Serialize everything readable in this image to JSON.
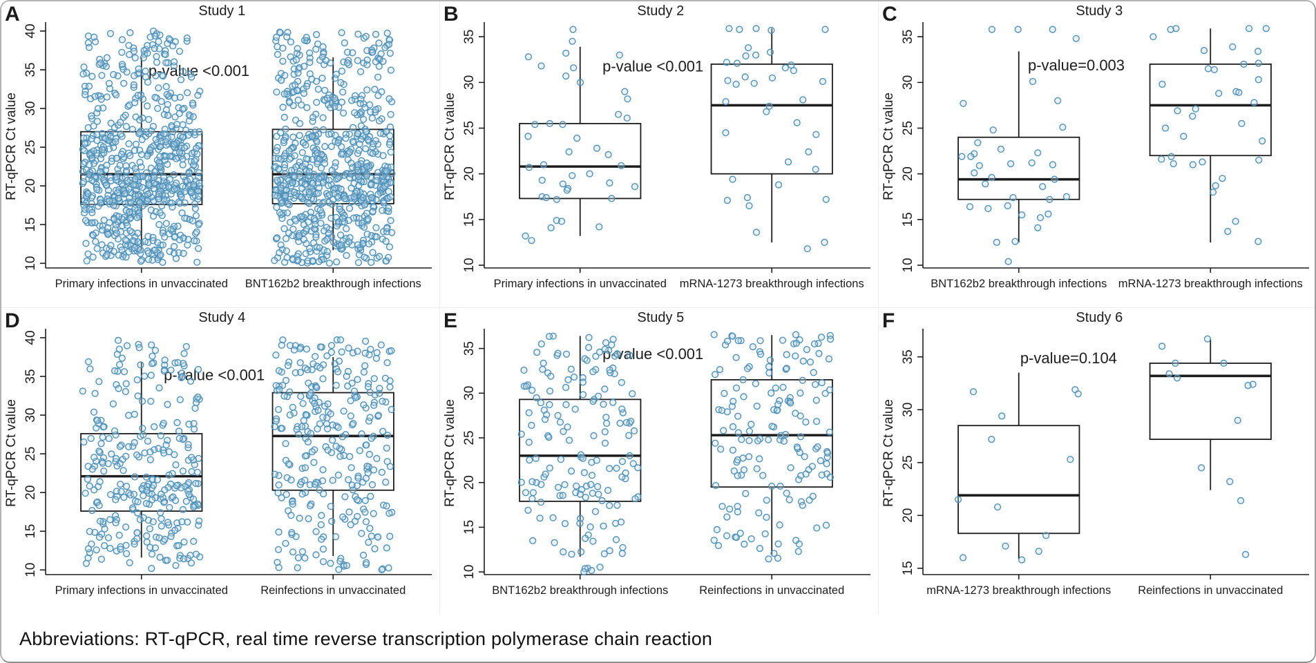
{
  "window": {
    "footer": "Abbreviations: RT-qPCR, real time reverse transcription polymerase chain reaction"
  },
  "style": {
    "point_stroke": "#4d8fb9",
    "point_fill": "#bcd9e9",
    "line_color": "#1c1c1c",
    "text_color": "#1c1c1c",
    "background": "#ffffff",
    "border_color": "#b3b3b3"
  },
  "chart_data": [
    {
      "type": "box-jitter",
      "panel_label": "A",
      "title": "Study 1",
      "p_label": "p-value <0.001",
      "p_pos": [
        0.4,
        34.2
      ],
      "ylabel": "RT-qPCR Ct value",
      "ylim": [
        9.4,
        40.8
      ],
      "yticks": [
        10,
        15,
        20,
        25,
        30,
        35,
        40
      ],
      "groups": [
        {
          "label": "Primary infections in unvaccinated",
          "box": {
            "whisker_low": 11.7,
            "q1": 17.6,
            "median": 21.5,
            "q3": 27.0,
            "whisker_high": 36.6
          },
          "points": {
            "n": 720,
            "min": 10.0,
            "max": 40.0,
            "seed": 101
          }
        },
        {
          "label": "BNT162b2 breakthrough infections",
          "box": {
            "whisker_low": 11.7,
            "q1": 17.7,
            "median": 21.5,
            "q3": 27.3,
            "whisker_high": 36.6
          },
          "points": {
            "n": 720,
            "min": 10.0,
            "max": 40.0,
            "seed": 102
          }
        }
      ]
    },
    {
      "type": "box-jitter",
      "panel_label": "B",
      "title": "Study 2",
      "p_label": "p-value <0.001",
      "p_pos": [
        0.44,
        31.2
      ],
      "ylabel": "RT-qPCR Ct value",
      "ylim": [
        9.7,
        36.3
      ],
      "yticks": [
        10,
        15,
        20,
        25,
        30,
        35
      ],
      "groups": [
        {
          "label": "Primary infections in unvaccinated",
          "box": {
            "whisker_low": 13.2,
            "q1": 17.3,
            "median": 20.8,
            "q3": 25.5,
            "whisker_high": 33.9
          },
          "points": {
            "seed": 201,
            "values": [
              35.8,
              34.5,
              33.2,
              33.0,
              32.8,
              31.8,
              31.6,
              30.7,
              30.0,
              29.0,
              28.2,
              26.5,
              26.1,
              25.5,
              25.4,
              25.4,
              24.1,
              23.9,
              22.8,
              22.4,
              22.1,
              21.0,
              20.9,
              20.7,
              20.0,
              19.8,
              19.3,
              19.0,
              18.9,
              18.6,
              18.4,
              18.2,
              17.5,
              17.4,
              17.3,
              17.2,
              14.9,
              14.8,
              14.2,
              14.1,
              13.2,
              12.7
            ]
          }
        },
        {
          "label": "mRNA-1273 breakthrough infections",
          "box": {
            "whisker_low": 12.5,
            "q1": 20.0,
            "median": 27.5,
            "q3": 32.0,
            "whisker_high": 35.9
          },
          "points": {
            "seed": 202,
            "values": [
              35.9,
              35.8,
              35.8,
              35.7,
              35.9,
              33.8,
              33.3,
              33.0,
              32.9,
              32.2,
              32.1,
              31.9,
              31.6,
              31.3,
              30.6,
              30.5,
              30.2,
              30.1,
              29.9,
              29.8,
              28.1,
              27.9,
              27.4,
              26.8,
              25.6,
              24.5,
              24.3,
              22.4,
              21.3,
              20.5,
              19.4,
              18.8,
              17.4,
              17.2,
              17.1,
              16.5,
              13.6,
              12.5,
              11.8
            ]
          }
        }
      ]
    },
    {
      "type": "box-jitter",
      "panel_label": "C",
      "title": "Study 3",
      "p_label": "p-value=0.003",
      "p_pos": [
        0.4,
        31.3
      ],
      "ylabel": "RT-qPCR Ct value",
      "ylim": [
        9.7,
        36.3
      ],
      "yticks": [
        10,
        15,
        20,
        25,
        30,
        35
      ],
      "groups": [
        {
          "label": "BNT162b2 breakthrough infections",
          "box": {
            "whisker_low": 12.5,
            "q1": 17.2,
            "median": 19.4,
            "q3": 24.0,
            "whisker_high": 33.4
          },
          "points": {
            "seed": 301,
            "values": [
              35.8,
              35.8,
              35.8,
              34.8,
              30.1,
              28.0,
              27.7,
              25.1,
              24.8,
              23.4,
              22.7,
              22.3,
              22.2,
              21.9,
              21.9,
              21.2,
              21.1,
              21.0,
              20.9,
              20.1,
              19.6,
              19.4,
              18.9,
              18.6,
              17.5,
              17.4,
              17.2,
              16.5,
              16.4,
              16.2,
              15.6,
              15.5,
              15.2,
              14.1,
              12.6,
              12.5,
              10.4
            ]
          }
        },
        {
          "label": "mRNA-1273 breakthrough infections",
          "box": {
            "whisker_low": 12.5,
            "q1": 22.0,
            "median": 27.5,
            "q3": 32.0,
            "whisker_high": 35.9
          },
          "points": {
            "seed": 302,
            "values": [
              35.9,
              35.9,
              35.9,
              35.8,
              35.0,
              33.9,
              33.5,
              33.4,
              32.1,
              32.0,
              31.5,
              31.4,
              30.3,
              29.8,
              29.0,
              28.9,
              28.8,
              27.8,
              27.1,
              26.9,
              26.3,
              25.5,
              25.0,
              24.1,
              23.6,
              21.9,
              21.6,
              21.5,
              21.3,
              21.1,
              21.0,
              19.5,
              18.7,
              18.0,
              14.8,
              13.7,
              12.6
            ]
          }
        }
      ]
    },
    {
      "type": "box-jitter",
      "panel_label": "D",
      "title": "Study 4",
      "p_label": "p-value <0.001",
      "p_pos": [
        0.44,
        34.5
      ],
      "ylabel": "RT-qPCR Ct value",
      "ylim": [
        9.4,
        40.8
      ],
      "yticks": [
        10,
        15,
        20,
        25,
        30,
        35,
        40
      ],
      "groups": [
        {
          "label": "Primary infections in unvaccinated",
          "box": {
            "whisker_low": 11.6,
            "q1": 17.6,
            "median": 22.1,
            "q3": 27.6,
            "whisker_high": 36.8
          },
          "points": {
            "n": 300,
            "min": 10.0,
            "max": 40.0,
            "seed": 401
          }
        },
        {
          "label": "Reinfections in unvaccinated",
          "box": {
            "whisker_low": 11.8,
            "q1": 20.3,
            "median": 27.3,
            "q3": 32.9,
            "whisker_high": 37.5
          },
          "points": {
            "n": 300,
            "min": 10.0,
            "max": 40.0,
            "seed": 402
          }
        }
      ]
    },
    {
      "type": "box-jitter",
      "panel_label": "E",
      "title": "Study 5",
      "p_label": "p-value <0.001",
      "p_pos": [
        0.44,
        33.8
      ],
      "ylabel": "RT-qPCR Ct value",
      "ylim": [
        9.7,
        36.9
      ],
      "yticks": [
        10,
        15,
        20,
        25,
        30,
        35
      ],
      "groups": [
        {
          "label": "BNT162b2 breakthrough infections",
          "box": {
            "whisker_low": 11.7,
            "q1": 17.9,
            "median": 23.0,
            "q3": 29.3,
            "whisker_high": 36.4
          },
          "points": {
            "n": 165,
            "min": 10.0,
            "max": 36.6,
            "seed": 501
          }
        },
        {
          "label": "Reinfections in unvaccinated",
          "box": {
            "whisker_low": 11.9,
            "q1": 19.5,
            "median": 25.3,
            "q3": 31.5,
            "whisker_high": 36.5
          },
          "points": {
            "n": 165,
            "min": 11.0,
            "max": 36.6,
            "seed": 502
          }
        }
      ]
    },
    {
      "type": "box-jitter",
      "panel_label": "F",
      "title": "Study 6",
      "p_label": "p-value=0.104",
      "p_pos": [
        0.38,
        34.4
      ],
      "ylabel": "RT-qPCR Ct value",
      "ylim": [
        14.4,
        37.4
      ],
      "yticks": [
        15,
        20,
        25,
        30,
        35
      ],
      "groups": [
        {
          "label": "mRNA-1273 breakthrough infections",
          "box": {
            "whisker_low": 15.9,
            "q1": 18.3,
            "median": 21.9,
            "q3": 28.5,
            "whisker_high": 33.5
          },
          "points": {
            "xy": [
              [
                -0.75,
                31.7
              ],
              [
                0.93,
                31.9
              ],
              [
                0.98,
                31.5
              ],
              [
                -0.28,
                29.4
              ],
              [
                -0.45,
                27.2
              ],
              [
                0.85,
                25.3
              ],
              [
                -1.0,
                21.5
              ],
              [
                -0.35,
                20.8
              ],
              [
                0.45,
                18.1
              ],
              [
                -0.22,
                17.1
              ],
              [
                0.33,
                16.6
              ],
              [
                -0.92,
                16.0
              ],
              [
                0.05,
                15.8
              ]
            ]
          }
        },
        {
          "label": "Reinfections in unvaccinated",
          "box": {
            "whisker_low": 22.4,
            "q1": 27.2,
            "median": 33.2,
            "q3": 34.4,
            "whisker_high": 36.7
          },
          "points": {
            "xy": [
              [
                -0.05,
                36.7
              ],
              [
                -0.8,
                36.0
              ],
              [
                -0.58,
                34.4
              ],
              [
                0.22,
                34.4
              ],
              [
                -0.68,
                33.4
              ],
              [
                -0.55,
                33.0
              ],
              [
                0.7,
                32.4
              ],
              [
                0.62,
                32.3
              ],
              [
                0.45,
                29.0
              ],
              [
                -0.15,
                24.5
              ],
              [
                0.32,
                23.2
              ],
              [
                0.5,
                21.4
              ],
              [
                0.58,
                16.3
              ]
            ]
          }
        }
      ]
    }
  ]
}
